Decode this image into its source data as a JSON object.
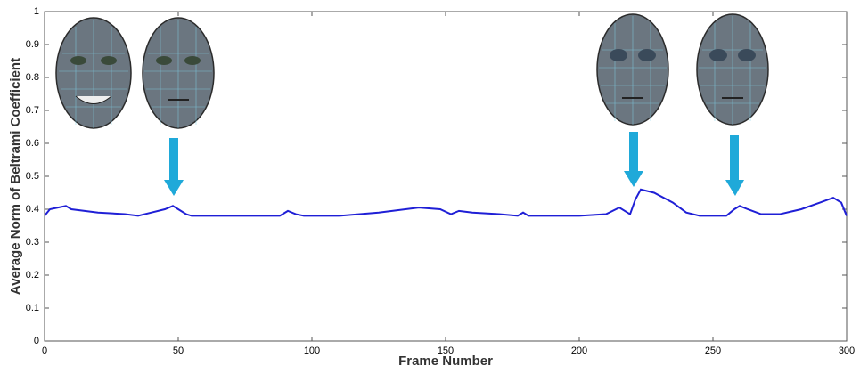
{
  "chart_data": {
    "type": "line",
    "xlabel": "Frame Number",
    "ylabel": "Average Norm of Beltrami Coefficient",
    "x": [
      0,
      2,
      5,
      8,
      10,
      20,
      30,
      35,
      40,
      45,
      48,
      50,
      53,
      55,
      70,
      88,
      91,
      94,
      97,
      110,
      125,
      140,
      148,
      152,
      155,
      160,
      170,
      177,
      179,
      181,
      200,
      210,
      215,
      219,
      221,
      223,
      228,
      235,
      240,
      245,
      255,
      258,
      260,
      263,
      268,
      275,
      283,
      290,
      295,
      298,
      300
    ],
    "values": [
      0.38,
      0.4,
      0.405,
      0.41,
      0.4,
      0.39,
      0.385,
      0.38,
      0.39,
      0.4,
      0.41,
      0.4,
      0.385,
      0.38,
      0.38,
      0.38,
      0.395,
      0.385,
      0.38,
      0.38,
      0.39,
      0.405,
      0.4,
      0.385,
      0.395,
      0.39,
      0.385,
      0.38,
      0.39,
      0.38,
      0.38,
      0.385,
      0.405,
      0.385,
      0.43,
      0.46,
      0.45,
      0.42,
      0.39,
      0.38,
      0.38,
      0.4,
      0.41,
      0.4,
      0.385,
      0.385,
      0.4,
      0.42,
      0.435,
      0.42,
      0.38
    ],
    "color": "#1f1fd6",
    "xlim": [
      0,
      300
    ],
    "xticks": [
      0,
      50,
      100,
      150,
      200,
      250,
      300
    ],
    "ylim": [
      0,
      1
    ],
    "yticks": [
      0,
      0.1,
      0.2,
      0.3,
      0.4,
      0.5,
      0.6,
      0.7,
      0.8,
      0.9,
      1
    ]
  }
}
